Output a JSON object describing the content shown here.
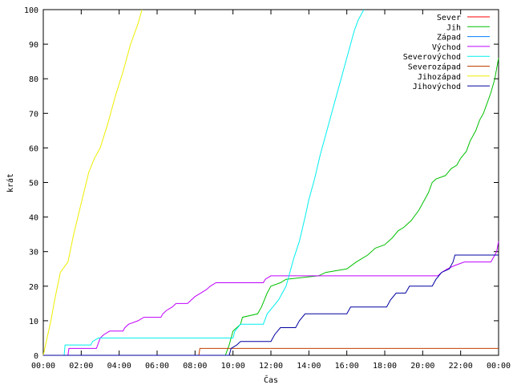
{
  "chart_data": {
    "type": "line",
    "xlabel": "Čas",
    "ylabel": "krát",
    "xlim": [
      0,
      24
    ],
    "ylim": [
      0,
      100
    ],
    "x_ticks": [
      {
        "v": 0,
        "label": "00:00"
      },
      {
        "v": 2,
        "label": "02:00"
      },
      {
        "v": 4,
        "label": "04:00"
      },
      {
        "v": 6,
        "label": "06:00"
      },
      {
        "v": 8,
        "label": "08:00"
      },
      {
        "v": 10,
        "label": "10:00"
      },
      {
        "v": 12,
        "label": "12:00"
      },
      {
        "v": 14,
        "label": "14:00"
      },
      {
        "v": 16,
        "label": "16:00"
      },
      {
        "v": 18,
        "label": "18:00"
      },
      {
        "v": 20,
        "label": "20:00"
      },
      {
        "v": 22,
        "label": "22:00"
      },
      {
        "v": 24,
        "label": "00:00"
      }
    ],
    "y_ticks": [
      0,
      10,
      20,
      30,
      40,
      50,
      60,
      70,
      80,
      90,
      100
    ],
    "legend_position": "top-right",
    "grid": false,
    "series": [
      {
        "name": "Sever",
        "color": "#ff0000",
        "points": []
      },
      {
        "name": "Jih",
        "color": "#00c000",
        "points": [
          [
            0,
            0
          ],
          [
            9.6,
            0
          ],
          [
            9.8,
            3
          ],
          [
            10,
            7
          ],
          [
            10.4,
            9
          ],
          [
            10.5,
            11
          ],
          [
            11.3,
            12
          ],
          [
            11.5,
            14
          ],
          [
            11.8,
            18
          ],
          [
            12,
            20
          ],
          [
            12.5,
            21
          ],
          [
            12.8,
            22
          ],
          [
            14.5,
            23
          ],
          [
            14.9,
            24
          ],
          [
            16,
            25
          ],
          [
            16.5,
            27
          ],
          [
            16.8,
            28
          ],
          [
            17.1,
            29
          ],
          [
            17.5,
            31
          ],
          [
            18,
            32
          ],
          [
            18.4,
            34
          ],
          [
            18.7,
            36
          ],
          [
            19,
            37
          ],
          [
            19.4,
            39
          ],
          [
            19.8,
            42
          ],
          [
            20,
            44
          ],
          [
            20.3,
            47
          ],
          [
            20.5,
            50
          ],
          [
            20.7,
            51
          ],
          [
            21.2,
            52
          ],
          [
            21.5,
            54
          ],
          [
            21.8,
            55
          ],
          [
            22,
            57
          ],
          [
            22.3,
            59
          ],
          [
            22.5,
            62
          ],
          [
            22.8,
            65
          ],
          [
            23,
            68
          ],
          [
            23.2,
            70
          ],
          [
            23.4,
            73
          ],
          [
            23.6,
            76
          ],
          [
            23.8,
            80
          ],
          [
            24,
            86
          ]
        ]
      },
      {
        "name": "Západ",
        "color": "#0080ff",
        "points": []
      },
      {
        "name": "Východ",
        "color": "#c000ff",
        "points": [
          [
            0,
            0
          ],
          [
            1.3,
            0
          ],
          [
            1.35,
            2
          ],
          [
            2.8,
            2
          ],
          [
            3,
            5
          ],
          [
            3.2,
            6
          ],
          [
            3.5,
            7
          ],
          [
            4.2,
            7
          ],
          [
            4.3,
            8
          ],
          [
            4.5,
            9
          ],
          [
            5,
            10
          ],
          [
            5.3,
            11
          ],
          [
            6.2,
            11
          ],
          [
            6.3,
            12
          ],
          [
            6.5,
            13
          ],
          [
            6.8,
            14
          ],
          [
            7,
            15
          ],
          [
            7.6,
            15
          ],
          [
            7.8,
            16
          ],
          [
            8,
            17
          ],
          [
            8.3,
            18
          ],
          [
            8.6,
            19
          ],
          [
            8.8,
            20
          ],
          [
            9.1,
            21
          ],
          [
            11.6,
            21
          ],
          [
            11.7,
            22
          ],
          [
            12,
            23
          ],
          [
            16,
            23
          ],
          [
            19,
            23
          ],
          [
            20.8,
            23
          ],
          [
            21,
            24
          ],
          [
            21.3,
            25
          ],
          [
            21.7,
            26
          ],
          [
            22.2,
            27
          ],
          [
            23.6,
            27
          ],
          [
            23.7,
            28
          ],
          [
            23.9,
            30
          ],
          [
            24,
            33
          ]
        ]
      },
      {
        "name": "Severovýchod",
        "color": "#00eeee",
        "points": [
          [
            0,
            0
          ],
          [
            1.1,
            0
          ],
          [
            1.15,
            3
          ],
          [
            2.5,
            3
          ],
          [
            2.6,
            4
          ],
          [
            2.9,
            5
          ],
          [
            10,
            5
          ],
          [
            10.1,
            7
          ],
          [
            10.4,
            9
          ],
          [
            11.6,
            9
          ],
          [
            11.8,
            12
          ],
          [
            12.1,
            14
          ],
          [
            12.4,
            16
          ],
          [
            12.6,
            18
          ],
          [
            12.8,
            20
          ],
          [
            13,
            24
          ],
          [
            13.2,
            28
          ],
          [
            13.5,
            33
          ],
          [
            13.8,
            40
          ],
          [
            14,
            45
          ],
          [
            14.3,
            51
          ],
          [
            14.6,
            58
          ],
          [
            14.9,
            64
          ],
          [
            15.2,
            70
          ],
          [
            15.5,
            76
          ],
          [
            15.8,
            82
          ],
          [
            16.1,
            88
          ],
          [
            16.4,
            94
          ],
          [
            16.6,
            97
          ],
          [
            16.8,
            99
          ],
          [
            16.9,
            100
          ]
        ]
      },
      {
        "name": "Severozápad",
        "color": "#c04000",
        "points": [
          [
            0,
            0
          ],
          [
            8.2,
            0
          ],
          [
            8.25,
            2
          ],
          [
            24,
            2
          ]
        ]
      },
      {
        "name": "Jihozápad",
        "color": "#eeee00",
        "points": [
          [
            0,
            0
          ],
          [
            0.2,
            5
          ],
          [
            0.4,
            10
          ],
          [
            0.6,
            16
          ],
          [
            0.9,
            24
          ],
          [
            1.3,
            27
          ],
          [
            1.6,
            35
          ],
          [
            2,
            44
          ],
          [
            2.4,
            53
          ],
          [
            2.7,
            57
          ],
          [
            3,
            60
          ],
          [
            3.4,
            67
          ],
          [
            3.8,
            75
          ],
          [
            4.2,
            82
          ],
          [
            4.6,
            90
          ],
          [
            5,
            96
          ],
          [
            5.2,
            100
          ]
        ]
      },
      {
        "name": "Jihovýchod",
        "color": "#0000a0",
        "points": [
          [
            0,
            0
          ],
          [
            9.8,
            0
          ],
          [
            9.9,
            2
          ],
          [
            10.2,
            3
          ],
          [
            10.4,
            4
          ],
          [
            12,
            4
          ],
          [
            12.2,
            6
          ],
          [
            12.5,
            8
          ],
          [
            13.3,
            8
          ],
          [
            13.5,
            10
          ],
          [
            13.8,
            12
          ],
          [
            16,
            12
          ],
          [
            16.2,
            14
          ],
          [
            18.1,
            14
          ],
          [
            18.3,
            16
          ],
          [
            18.6,
            18
          ],
          [
            19.1,
            18
          ],
          [
            19.3,
            20
          ],
          [
            20.5,
            20
          ],
          [
            20.7,
            22
          ],
          [
            21,
            24
          ],
          [
            21.4,
            25
          ],
          [
            21.6,
            27
          ],
          [
            21.7,
            29
          ],
          [
            24,
            29
          ]
        ]
      }
    ]
  }
}
